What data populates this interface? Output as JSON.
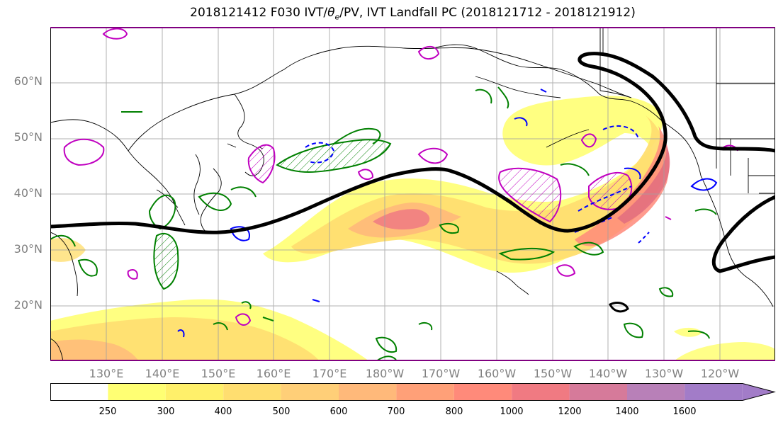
{
  "title": {
    "prefix": "2018121412 F030 IVT/",
    "symbol": "θ",
    "subscript": "e",
    "suffix": "/PV, IVT Landfall PC (2018121712 - 2018121912)"
  },
  "axes": {
    "lat_labels": [
      {
        "text": "60°N",
        "lat": 60
      },
      {
        "text": "50°N",
        "lat": 50
      },
      {
        "text": "40°N",
        "lat": 40
      },
      {
        "text": "30°N",
        "lat": 30
      },
      {
        "text": "20°N",
        "lat": 20
      }
    ],
    "lon_labels": [
      {
        "text": "130°E",
        "lon": 130
      },
      {
        "text": "140°E",
        "lon": 140
      },
      {
        "text": "150°E",
        "lon": 150
      },
      {
        "text": "160°E",
        "lon": 160
      },
      {
        "text": "170°E",
        "lon": 170
      },
      {
        "text": "180°W",
        "lon": 180
      },
      {
        "text": "170°W",
        "lon": 190
      },
      {
        "text": "160°W",
        "lon": 200
      },
      {
        "text": "150°W",
        "lon": 210
      },
      {
        "text": "140°W",
        "lon": 220
      },
      {
        "text": "130°W",
        "lon": 230
      },
      {
        "text": "120°W",
        "lon": 240
      }
    ],
    "lon_range": [
      120,
      250
    ],
    "lat_range": [
      10,
      70
    ],
    "grid": true
  },
  "colorbar": {
    "levels": [
      "250",
      "300",
      "400",
      "500",
      "600",
      "700",
      "800",
      "1000",
      "1200",
      "1400",
      "1600"
    ],
    "colors": [
      "#ffffff",
      "#ffff73",
      "#fff06a",
      "#ffde70",
      "#ffcf78",
      "#ffb97a",
      "#ffa078",
      "#ff8a7a",
      "#f07a82",
      "#d67a9a",
      "#b880b8",
      "#a27cc8"
    ],
    "extend": "max"
  },
  "colors": {
    "ivt_contour_line": "#ff9e80",
    "green_contour": "#008000",
    "magenta_contour": "#c000c0",
    "blue_contour": "#0000ff",
    "black_pc": "#000000",
    "coastline": "#000000",
    "grid": "#a0a0a0"
  }
}
